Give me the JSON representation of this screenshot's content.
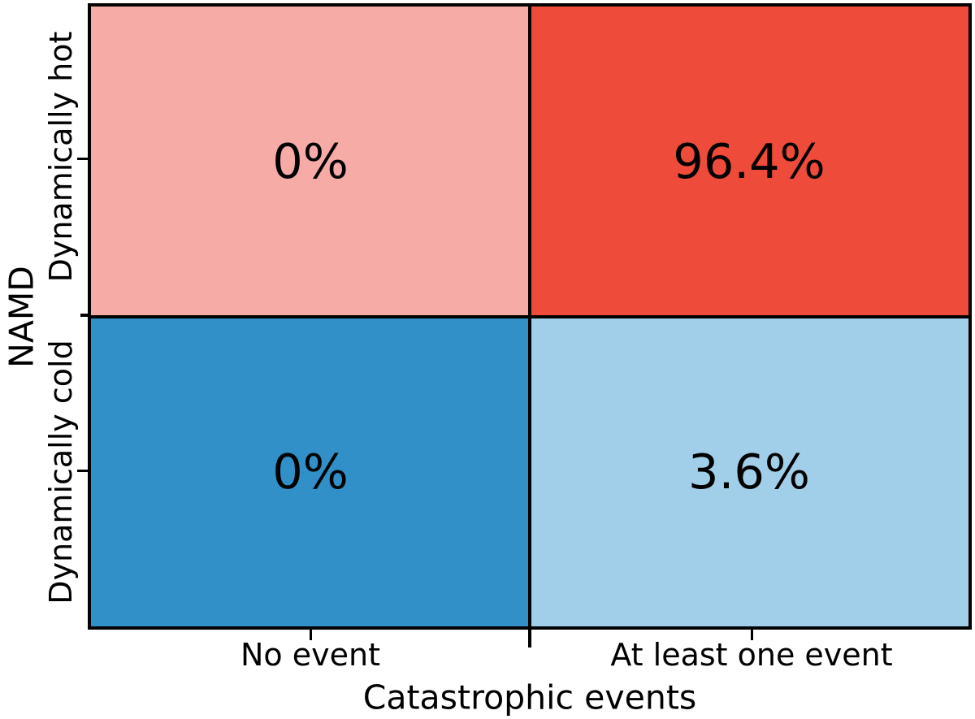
{
  "chart_data": {
    "type": "heatmap",
    "title": "",
    "xlabel": "Catastrophic events",
    "ylabel": "NAMD",
    "x_categories": [
      "No event",
      "At least one event"
    ],
    "y_categories": [
      "Dynamically hot",
      "Dynamically cold"
    ],
    "matrix_percent": [
      [
        0,
        96.4
      ],
      [
        0,
        3.6
      ]
    ],
    "cells": [
      {
        "y": "Dynamically hot",
        "x": "No event",
        "label": "0%",
        "value_percent": 0,
        "color": "#F7ABA6"
      },
      {
        "y": "Dynamically hot",
        "x": "At least one event",
        "label": "96.4%",
        "value_percent": 96.4,
        "color": "#EF4B3B"
      },
      {
        "y": "Dynamically cold",
        "x": "No event",
        "label": "0%",
        "value_percent": 0,
        "color": "#3190C8"
      },
      {
        "y": "Dynamically cold",
        "x": "At least one event",
        "label": "3.6%",
        "value_percent": 3.6,
        "color": "#A1CEE8"
      }
    ],
    "style": {
      "border_color": "#000000",
      "divider_color": "#000000",
      "text_color": "#000000",
      "background": "#ffffff",
      "grid": false,
      "legend": "none"
    }
  }
}
